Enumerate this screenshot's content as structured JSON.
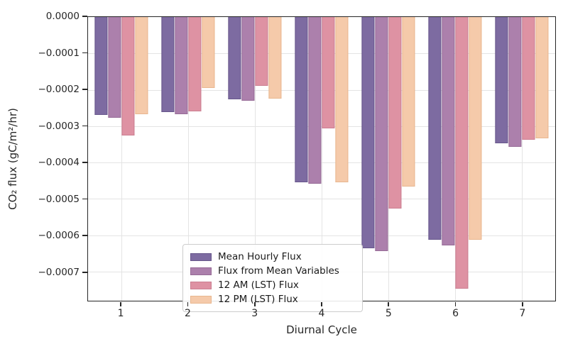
{
  "figure": {
    "background": "#ffffff",
    "spine_color": "#262626",
    "grid_color": "#e4e4e4"
  },
  "chart_data": {
    "type": "bar",
    "title": "",
    "xlabel": "Diurnal Cycle",
    "ylabel": "CO₂ flux (gC/m²/hr)",
    "categories": [
      "1",
      "2",
      "3",
      "4",
      "5",
      "6",
      "7"
    ],
    "series": [
      {
        "name": "Mean Hourly Flux",
        "color": "#7d6ba1",
        "edge_color": "#67568b",
        "values": [
          -0.00027,
          -0.000262,
          -0.000227,
          -0.000455,
          -0.000635,
          -0.000613,
          -0.000347
        ]
      },
      {
        "name": "Flux from Mean Variables",
        "color": "#ac80ac",
        "edge_color": "#966a96",
        "values": [
          -0.000277,
          -0.000268,
          -0.000231,
          -0.000458,
          -0.000644,
          -0.000628,
          -0.000356
        ]
      },
      {
        "name": "12 AM (LST) Flux",
        "color": "#de92a3",
        "edge_color": "#cb7e91",
        "values": [
          -0.000325,
          -0.000259,
          -0.000189,
          -0.000307,
          -0.000526,
          -0.000746,
          -0.000337
        ]
      },
      {
        "name": "12 PM (LST) Flux",
        "color": "#f5caaa",
        "edge_color": "#e8b68f",
        "values": [
          -0.000268,
          -0.000195,
          -0.000224,
          -0.000455,
          -0.000467,
          -0.000612,
          -0.000334
        ]
      }
    ],
    "ylim": [
      -0.00078,
      0
    ],
    "xlim": [
      0.5,
      7.5
    ],
    "yticks": [
      {
        "value": 0,
        "label": "0.0000"
      },
      {
        "value": -0.0001,
        "label": "−0.0001"
      },
      {
        "value": -0.0002,
        "label": "−0.0002"
      },
      {
        "value": -0.0003,
        "label": "−0.0003"
      },
      {
        "value": -0.0004,
        "label": "−0.0004"
      },
      {
        "value": -0.0005,
        "label": "−0.0005"
      },
      {
        "value": -0.0006,
        "label": "−0.0006"
      },
      {
        "value": -0.0007,
        "label": "−0.0007"
      }
    ],
    "grid": true,
    "legend_position": "lower-left-inside"
  }
}
